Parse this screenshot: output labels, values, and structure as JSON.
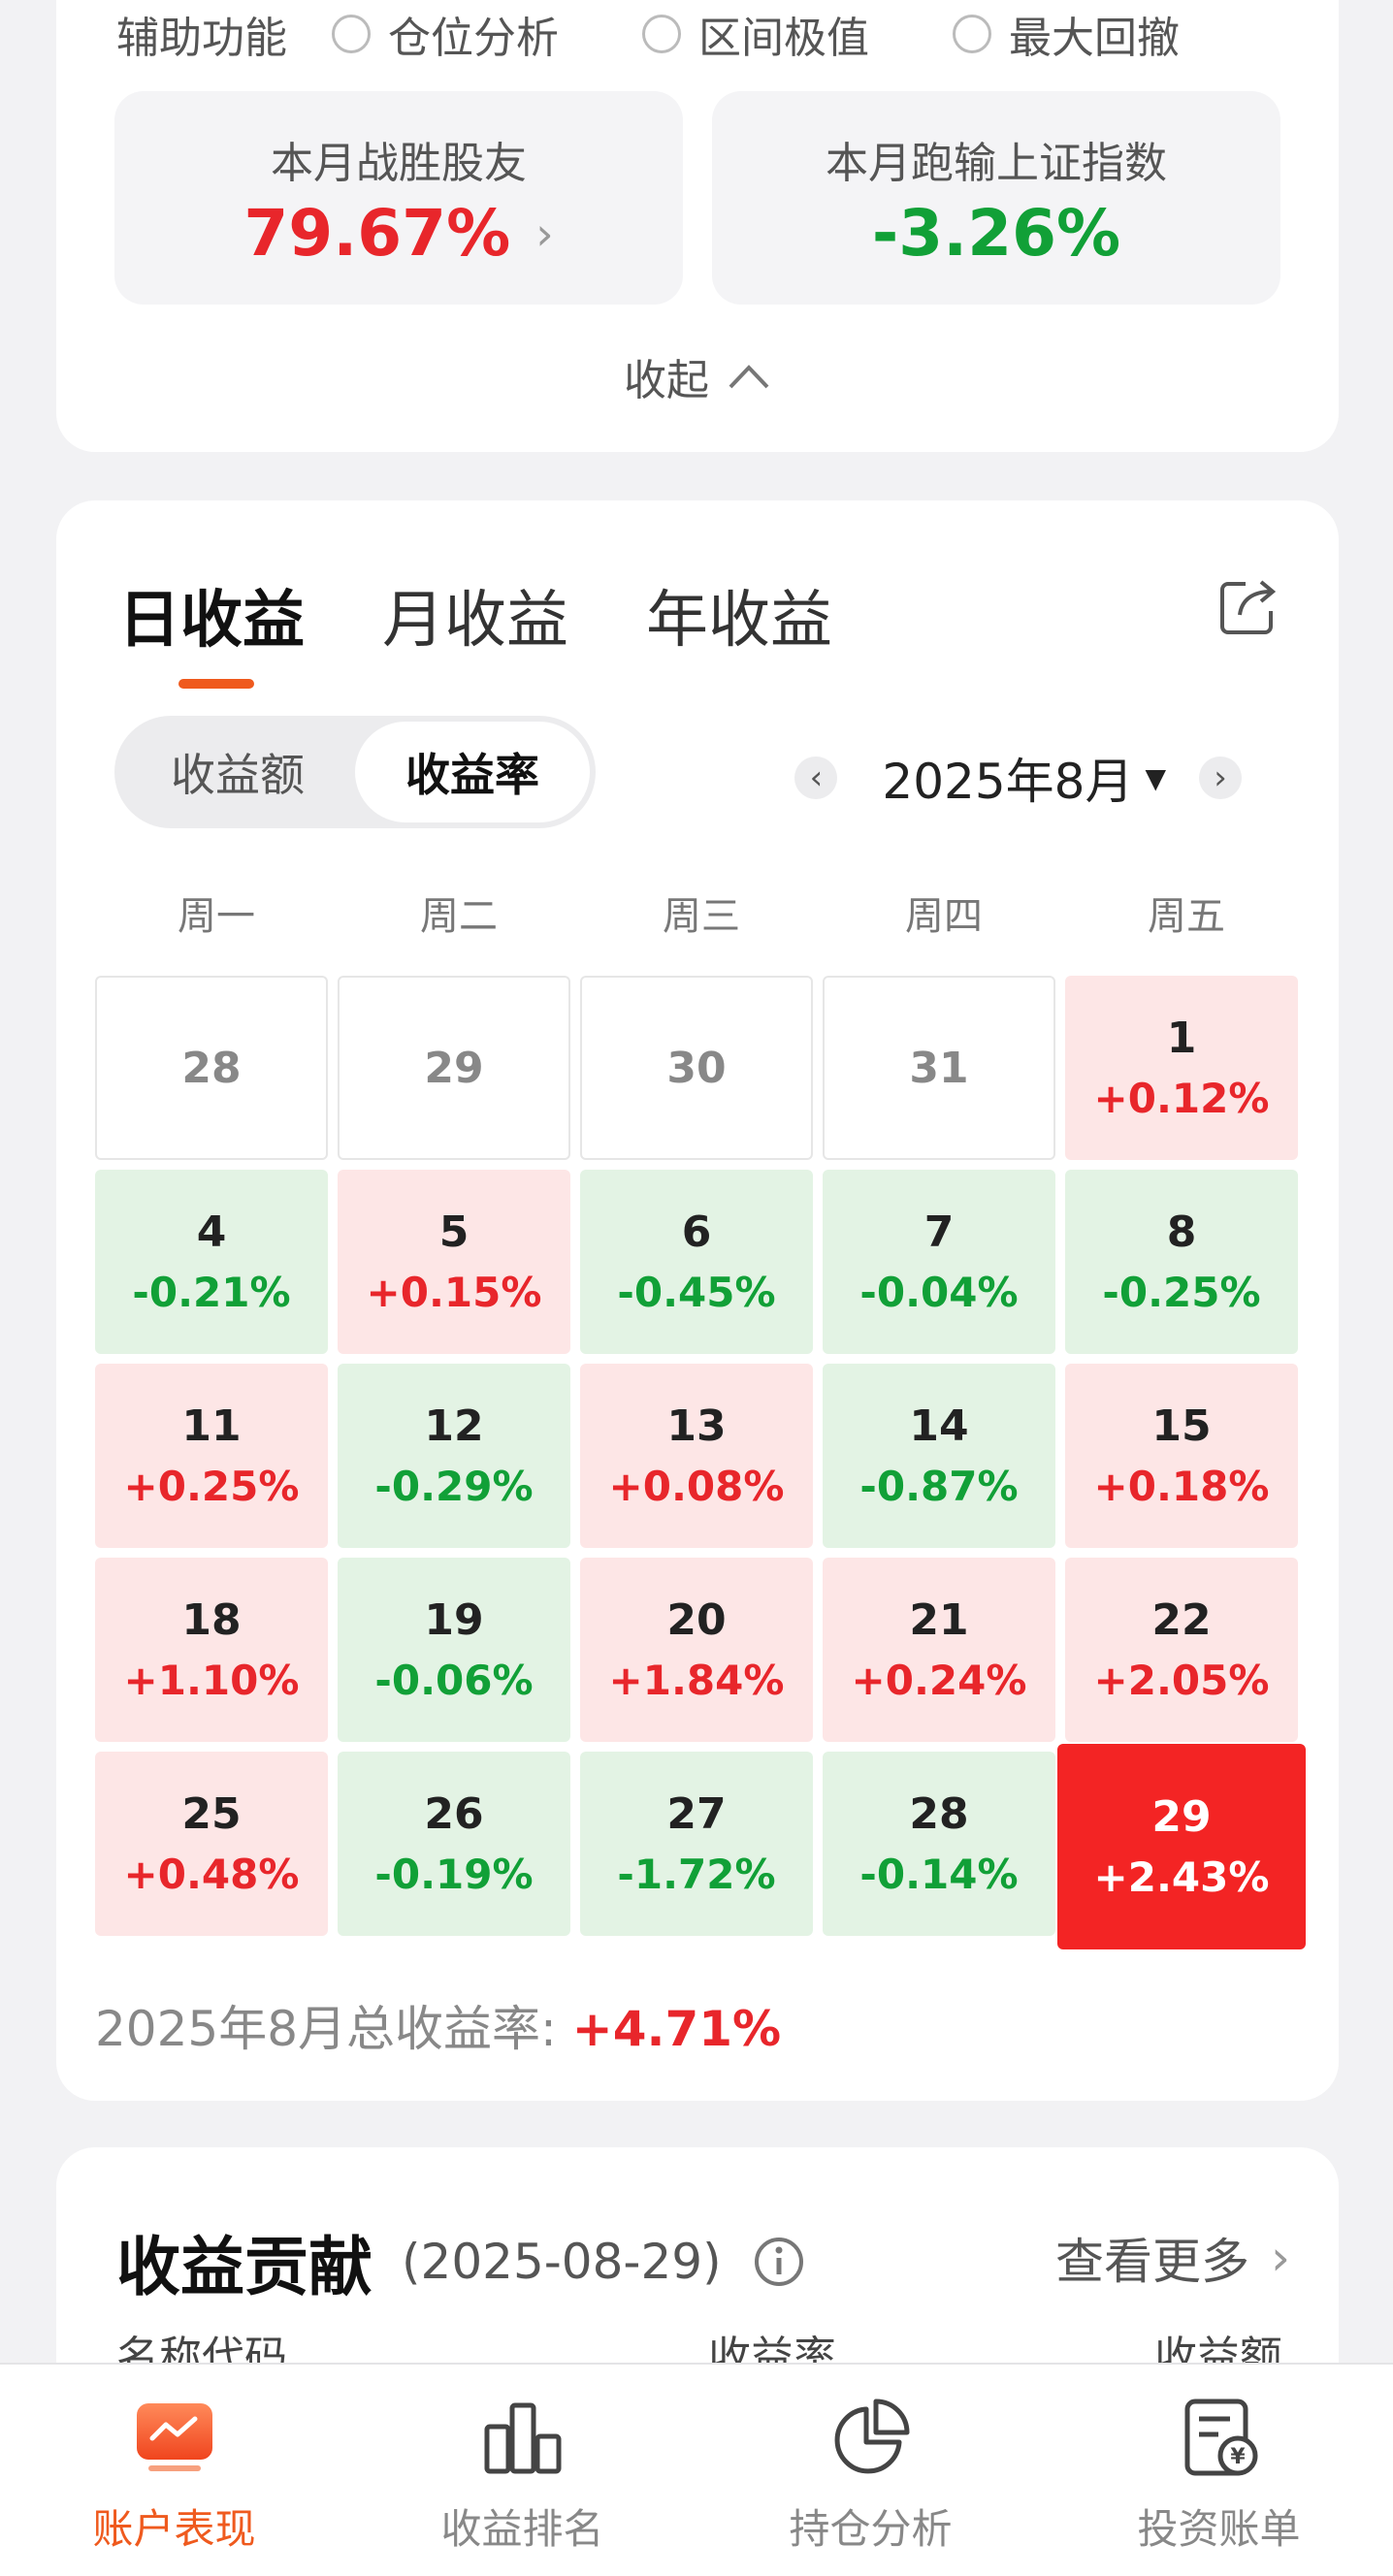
{
  "aux": {
    "title": "辅助功能",
    "options": [
      "仓位分析",
      "区间极值",
      "最大回撤"
    ]
  },
  "stats": {
    "beat_label": "本月战胜股友",
    "beat_value": "79.67%",
    "lose_label": "本月跑输上证指数",
    "lose_value": "-3.26%"
  },
  "collapse_label": "收起",
  "tabs": [
    "日收益",
    "月收益",
    "年收益"
  ],
  "segment": [
    "收益额",
    "收益率"
  ],
  "month": "2025年8月",
  "weekdays": [
    "周一",
    "周二",
    "周三",
    "周四",
    "周五"
  ],
  "calendar": [
    {
      "d": "28",
      "p": "",
      "t": "empty"
    },
    {
      "d": "29",
      "p": "",
      "t": "empty"
    },
    {
      "d": "30",
      "p": "",
      "t": "empty"
    },
    {
      "d": "31",
      "p": "",
      "t": "empty"
    },
    {
      "d": "1",
      "p": "+0.12%",
      "t": "up"
    },
    {
      "d": "4",
      "p": "-0.21%",
      "t": "down"
    },
    {
      "d": "5",
      "p": "+0.15%",
      "t": "up"
    },
    {
      "d": "6",
      "p": "-0.45%",
      "t": "down"
    },
    {
      "d": "7",
      "p": "-0.04%",
      "t": "down"
    },
    {
      "d": "8",
      "p": "-0.25%",
      "t": "down"
    },
    {
      "d": "11",
      "p": "+0.25%",
      "t": "up"
    },
    {
      "d": "12",
      "p": "-0.29%",
      "t": "down"
    },
    {
      "d": "13",
      "p": "+0.08%",
      "t": "up"
    },
    {
      "d": "14",
      "p": "-0.87%",
      "t": "down"
    },
    {
      "d": "15",
      "p": "+0.18%",
      "t": "up"
    },
    {
      "d": "18",
      "p": "+1.10%",
      "t": "up"
    },
    {
      "d": "19",
      "p": "-0.06%",
      "t": "down"
    },
    {
      "d": "20",
      "p": "+1.84%",
      "t": "up"
    },
    {
      "d": "21",
      "p": "+0.24%",
      "t": "up"
    },
    {
      "d": "22",
      "p": "+2.05%",
      "t": "up"
    },
    {
      "d": "25",
      "p": "+0.48%",
      "t": "up"
    },
    {
      "d": "26",
      "p": "-0.19%",
      "t": "down"
    },
    {
      "d": "27",
      "p": "-1.72%",
      "t": "down"
    },
    {
      "d": "28",
      "p": "-0.14%",
      "t": "down"
    },
    {
      "d": "29",
      "p": "+2.43%",
      "t": "selected"
    }
  ],
  "total": {
    "label": "2025年8月总收益率: ",
    "value": "+4.71%"
  },
  "contrib": {
    "title": "收益贡献",
    "date": "(2025-08-29)",
    "see_more": "查看更多",
    "col_name": "名称代码",
    "col_rate": "收益率",
    "col_amount": "收益额"
  },
  "nav": [
    "账户表现",
    "收益排名",
    "持仓分析",
    "投资账单"
  ],
  "colors": {
    "accent": "#ef5a1e",
    "up": "#e8262b",
    "down": "#11a037"
  }
}
